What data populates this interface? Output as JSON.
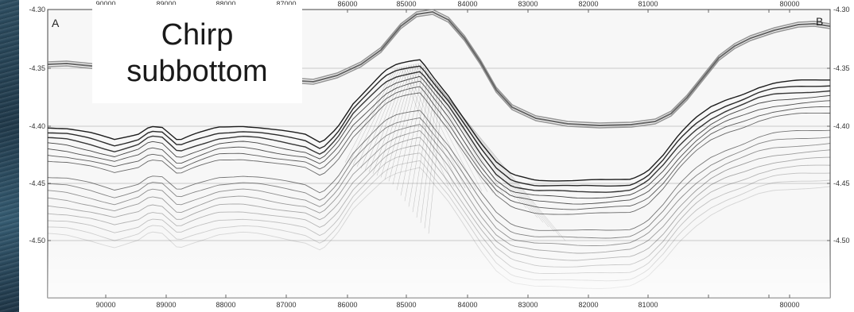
{
  "caption": {
    "line1": "Chirp",
    "line2": "subbottom"
  },
  "section": {
    "start_label": "A",
    "end_label": "B",
    "x_ticks": [
      "90000",
      "89000",
      "88000",
      "87000",
      "86000",
      "85000",
      "84000",
      "83000",
      "82000",
      "81000",
      "80000"
    ],
    "y_ticks": [
      "-4.30",
      "-4.35",
      "-4.40",
      "-4.45",
      "-4.50"
    ]
  },
  "colors": {
    "reflector": "#111111",
    "seafloor_band": "#8a8a8a",
    "gridline": "#9a9a9a",
    "background_water": "#1c3a4c"
  }
}
